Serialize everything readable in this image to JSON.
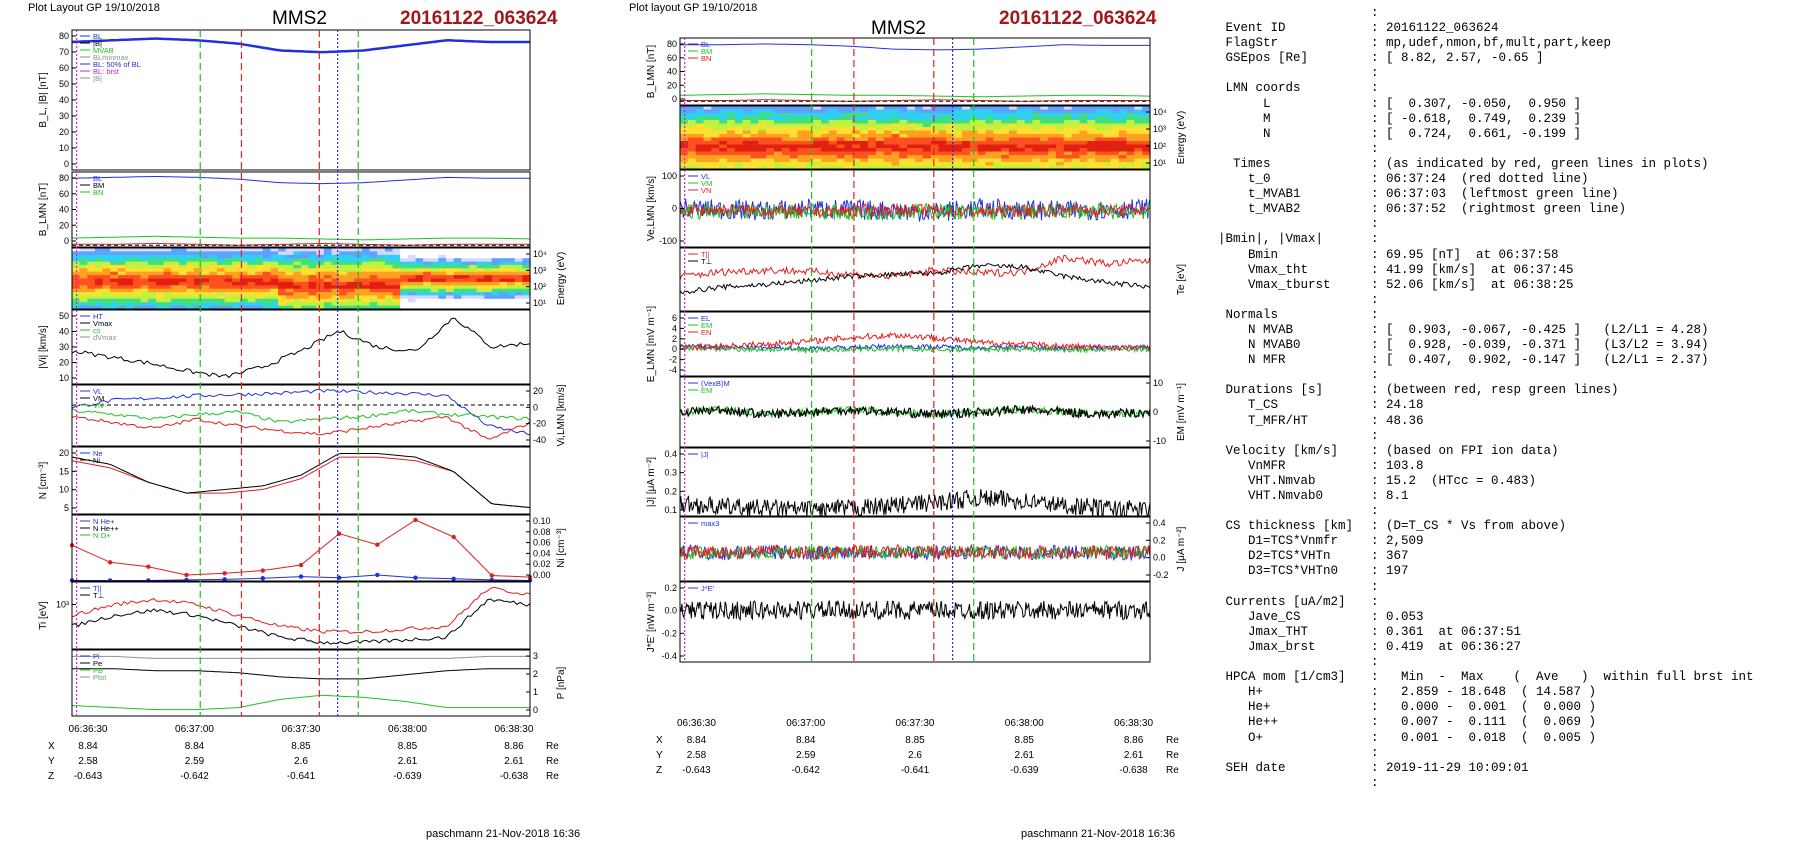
{
  "header": {
    "left_plot_label": "Plot Layout GP 19/10/2018",
    "mid_plot_label": "Plot layout GP 19/10/2018",
    "spacecraft": "MMS2",
    "event": "20161122_063624",
    "footer": "paschmann 21-Nov-2018 16:36"
  },
  "colors": {
    "event_text": "#a01818",
    "red": "#e02020",
    "green": "#20c020",
    "blue": "#2030e0",
    "black": "#000000",
    "magenta": "#d020d0",
    "cyan": "#20b0d0",
    "gray": "#909090"
  },
  "chart_data": [
    {
      "id": "left",
      "type": "line",
      "x_ticks": [
        "06:36:30",
        "06:37:00",
        "06:37:30",
        "06:38:00",
        "06:38:30"
      ],
      "ephemeris": {
        "rows": [
          {
            "label": "X",
            "values": [
              "8.84",
              "8.84",
              "8.85",
              "8.85",
              "8.86"
            ],
            "unit": "Re"
          },
          {
            "label": "Y",
            "values": [
              "2.58",
              "2.59",
              "2.6",
              "2.61",
              "2.61"
            ],
            "unit": "Re"
          },
          {
            "label": "Z",
            "values": [
              "-0.643",
              "-0.642",
              "-0.641",
              "-0.639",
              "-0.638"
            ],
            "unit": "Re"
          }
        ]
      },
      "panels": [
        {
          "key": "b",
          "ylabel": "B_L, |B| [nT]",
          "yticks": [
            "80",
            "70",
            "60",
            "50",
            "40",
            "30",
            "20",
            "10",
            "0"
          ],
          "ytick_side": "left",
          "legend": [
            "BL",
            "|B|",
            "MVAB",
            "BLminmax",
            "BL: 50% of BL",
            "BL: brst",
            "|B|"
          ],
          "series": [
            {
              "name": "BL",
              "values": [
                75,
                76,
                77,
                76,
                74,
                70,
                69,
                70,
                73,
                76,
                75,
                75
              ]
            }
          ]
        },
        {
          "key": "blmn",
          "ylabel": "B_LMN [nT]",
          "yticks": [
            "80",
            "60",
            "40",
            "20",
            "0"
          ],
          "ytick_side": "left",
          "legend": [
            "BL",
            "BM",
            "BN"
          ],
          "series": [
            {
              "name": "BL",
              "values": [
                75,
                76,
                77,
                76,
                74,
                70,
                69,
                70,
                73,
                76,
                75,
                75
              ]
            },
            {
              "name": "BM",
              "values": [
                8,
                9,
                10,
                9,
                8,
                8,
                7,
                6,
                7,
                8,
                8,
                7
              ]
            },
            {
              "name": "BN",
              "values": [
                1,
                1,
                2,
                1,
                0,
                1,
                2,
                1,
                0,
                1,
                1,
                1
              ]
            }
          ]
        },
        {
          "key": "espec",
          "ylabel": "Energy (eV)",
          "yticks": [
            "10⁴",
            "10³",
            "10²",
            "10¹"
          ],
          "ytick_side": "right",
          "type": "heatmap"
        },
        {
          "key": "vi",
          "ylabel": "|Vi| [km/s]",
          "yticks": [
            "50",
            "40",
            "30",
            "20",
            "10"
          ],
          "ytick_side": "left",
          "legend": [
            "HT",
            "Vmax",
            "cs",
            "dVmax"
          ],
          "series": [
            {
              "name": "|Vi|",
              "values": [
                28,
                25,
                22,
                18,
                15,
                20,
                28,
                38,
                30,
                28,
                45,
                30,
                32
              ]
            }
          ]
        },
        {
          "key": "vilmn",
          "ylabel": "Vi,LMN [km/s]",
          "yticks": [
            "20",
            "0",
            "-20",
            "-40"
          ],
          "ytick_side": "right",
          "legend": [
            "VL",
            "VM",
            "VN"
          ],
          "series": [
            {
              "name": "VL",
              "values": [
                -2,
                4,
                6,
                8,
                9,
                10,
                12,
                11,
                10,
                8,
                -18,
                -25
              ]
            },
            {
              "name": "VM",
              "values": [
                -5,
                -8,
                -12,
                -8,
                -6,
                -15,
                -12,
                -10,
                -5,
                -8,
                -10,
                -12
              ]
            },
            {
              "name": "VN",
              "values": [
                -10,
                -15,
                -20,
                -12,
                -18,
                -22,
                -25,
                -20,
                -15,
                -10,
                -30,
                -15
              ]
            }
          ]
        },
        {
          "key": "n",
          "ylabel": "N [cm⁻³]",
          "yticks": [
            "20",
            "15",
            "10",
            "5"
          ],
          "ytick_side": "left",
          "legend": [
            "Ne",
            "Ni"
          ],
          "series": [
            {
              "name": "Ne",
              "values": [
                16,
                14,
                10,
                7,
                7,
                8,
                11,
                17,
                17,
                16,
                13,
                4,
                3
              ]
            },
            {
              "name": "Ni",
              "values": [
                17,
                15,
                10,
                7,
                8,
                9,
                12,
                18,
                18,
                17,
                13,
                4,
                3
              ]
            }
          ]
        },
        {
          "key": "nhpca",
          "ylabel": "Ni [cm⁻³]",
          "yticks": [
            "0.10",
            "0.08",
            "0.06",
            "0.04",
            "0.02",
            "0.00"
          ],
          "ytick_side": "right",
          "legend": [
            "N He+",
            "N He++",
            "N O+"
          ],
          "series": [
            {
              "name": "N He++",
              "values": [
                0.065,
                0.034,
                0.026,
                0.011,
                0.014,
                0.019,
                0.029,
                0.086,
                0.066,
                0.111,
                0.08,
                0.01,
                0.007
              ]
            },
            {
              "name": "N O+",
              "values": [
                0.001,
                0.001,
                0.001,
                0.002,
                0.003,
                0.005,
                0.008,
                0.006,
                0.011,
                0.006,
                0.004,
                0.002,
                0.001
              ]
            }
          ]
        },
        {
          "key": "ti",
          "ylabel": "Ti [eV]",
          "yticks": [
            "10³"
          ],
          "ytick_side": "left",
          "legend": [
            "T||",
            "T⊥"
          ],
          "series": [
            {
              "name": "T||",
              "values": [
                700,
                900,
                1000,
                900,
                700,
                500,
                400,
                400,
                450,
                500,
                1200,
                1100
              ]
            },
            {
              "name": "T⊥",
              "values": [
                500,
                700,
                800,
                700,
                500,
                300,
                200,
                200,
                250,
                300,
                1000,
                900
              ]
            }
          ]
        },
        {
          "key": "p",
          "ylabel": "P [nPa]",
          "yticks": [
            "3",
            "2",
            "1",
            "0"
          ],
          "ytick_side": "right",
          "legend": [
            "Pi",
            "Pe",
            "PB",
            "Ptot"
          ],
          "series": [
            {
              "name": "Ptot",
              "values": [
                2.8,
                2.8,
                2.7,
                2.7,
                2.7,
                2.7,
                2.7,
                2.7,
                2.7,
                2.7,
                2.8,
                2.8
              ]
            },
            {
              "name": "PB",
              "values": [
                2.2,
                2.2,
                2.1,
                2.1,
                2.0,
                1.8,
                1.7,
                1.7,
                1.9,
                2.1,
                2.2,
                2.2
              ]
            },
            {
              "name": "Pi",
              "values": [
                0.4,
                0.3,
                0.2,
                0.2,
                0.3,
                0.7,
                0.9,
                0.8,
                0.6,
                0.3,
                0.3,
                0.3
              ]
            }
          ]
        }
      ]
    },
    {
      "id": "mid",
      "type": "line",
      "x_ticks": [
        "06:36:30",
        "06:37:00",
        "06:37:30",
        "06:38:00",
        "06:38:30"
      ],
      "ephemeris": {
        "rows": [
          {
            "label": "X",
            "values": [
              "8.84",
              "8.84",
              "8.85",
              "8.85",
              "8.86"
            ],
            "unit": "Re"
          },
          {
            "label": "Y",
            "values": [
              "2.58",
              "2.59",
              "2.6",
              "2.61",
              "2.61"
            ],
            "unit": "Re"
          },
          {
            "label": "Z",
            "values": [
              "-0.643",
              "-0.642",
              "-0.641",
              "-0.639",
              "-0.638"
            ],
            "unit": "Re"
          }
        ]
      },
      "panels": [
        {
          "key": "blmn",
          "ylabel": "B_LMN [nT]",
          "yticks": [
            "80",
            "60",
            "40",
            "20",
            "0"
          ],
          "ytick_side": "left",
          "legend": [
            "BL",
            "BM",
            "BN"
          ]
        },
        {
          "key": "espec",
          "ylabel": "Energy (eV)",
          "yticks": [
            "10⁴",
            "10³",
            "10²",
            "10¹"
          ],
          "ytick_side": "right",
          "type": "heatmap"
        },
        {
          "key": "velmn",
          "ylabel": "Ve,LMN [km/s]",
          "yticks": [
            "100",
            "0",
            "-100"
          ],
          "ytick_side": "left",
          "legend": [
            "VL",
            "VM",
            "VN"
          ]
        },
        {
          "key": "te",
          "ylabel": "Te [eV]",
          "yticks": [],
          "ytick_side": "right",
          "legend": [
            "T||",
            "T⊥"
          ]
        },
        {
          "key": "elmn",
          "ylabel": "E_LMN [mV m⁻¹]",
          "yticks": [
            "6",
            "4",
            "2",
            "0",
            "-2",
            "-4"
          ],
          "ytick_side": "left",
          "legend": [
            "EL",
            "EM",
            "EN"
          ]
        },
        {
          "key": "em",
          "ylabel": "EM [mV m⁻¹]",
          "yticks": [
            "10",
            "0",
            "-10"
          ],
          "ytick_side": "right",
          "legend": [
            "(VexB)M",
            "EM"
          ]
        },
        {
          "key": "j",
          "ylabel": "|J| [μA m⁻²]",
          "yticks": [
            "0.4",
            "0.3",
            "0.2",
            "0.1"
          ],
          "ytick_side": "left",
          "legend": [
            "|J|"
          ]
        },
        {
          "key": "jlmn",
          "ylabel": "J [μA m⁻²]",
          "yticks": [
            "0.4",
            "0.2",
            "0.0",
            "-0.2"
          ],
          "ytick_side": "right",
          "legend": [
            "max3"
          ]
        },
        {
          "key": "je",
          "ylabel": "J*E' [nW m⁻³]",
          "yticks": [
            "0.2",
            "0.0",
            "-0.2",
            "-0.4"
          ],
          "ytick_side": "left",
          "legend": [
            "J*E'"
          ]
        }
      ]
    }
  ],
  "info": {
    "lines": [
      {
        "k": "",
        "v": ":"
      },
      {
        "k": " Event ID",
        "v": ": 20161122_063624"
      },
      {
        "k": " FlagStr",
        "v": ": mp,udef,nmon,bf,mult,part,keep"
      },
      {
        "k": " GSEpos [Re]",
        "v": ": [ 8.82, 2.57, -0.65 ]"
      },
      {
        "k": "",
        "v": ":"
      },
      {
        "k": " LMN coords",
        "v": ":"
      },
      {
        "k": "      L",
        "v": ": [  0.307, -0.050,  0.950 ]"
      },
      {
        "k": "      M",
        "v": ": [ -0.618,  0.749,  0.239 ]"
      },
      {
        "k": "      N",
        "v": ": [  0.724,  0.661, -0.199 ]"
      },
      {
        "k": "",
        "v": ":"
      },
      {
        "k": "  Times",
        "v": ": (as indicated by red, green lines in plots)"
      },
      {
        "k": "    t_0",
        "v": ": 06:37:24  (red dotted line)"
      },
      {
        "k": "    t_MVAB1",
        "v": ": 06:37:03  (leftmost green line)"
      },
      {
        "k": "    t_MVAB2",
        "v": ": 06:37:52  (rightmost green line)"
      },
      {
        "k": "",
        "v": ":"
      },
      {
        "k": "|Bmin|, |Vmax|",
        "v": ":"
      },
      {
        "k": "    Bmin",
        "v": ": 69.95 [nT]  at 06:37:58"
      },
      {
        "k": "    Vmax_tht",
        "v": ": 41.99 [km/s]  at 06:37:45"
      },
      {
        "k": "    Vmax_tburst",
        "v": ": 52.06 [km/s]  at 06:38:25"
      },
      {
        "k": "",
        "v": ":"
      },
      {
        "k": " Normals",
        "v": ":"
      },
      {
        "k": "    N MVAB",
        "v": ": [  0.903, -0.067, -0.425 ]   (L2/L1 = 4.28)"
      },
      {
        "k": "    N MVAB0",
        "v": ": [  0.928, -0.039, -0.371 ]   (L3/L2 = 3.94)"
      },
      {
        "k": "    N MFR",
        "v": ": [  0.407,  0.902, -0.147 ]   (L2/L1 = 2.37)"
      },
      {
        "k": "",
        "v": ":"
      },
      {
        "k": " Durations [s]",
        "v": ": (between red, resp green lines)"
      },
      {
        "k": "    T_CS",
        "v": ": 24.18"
      },
      {
        "k": "    T_MFR/HT",
        "v": ": 48.36"
      },
      {
        "k": "",
        "v": ":"
      },
      {
        "k": " Velocity [km/s]",
        "v": ": (based on FPI ion data)"
      },
      {
        "k": "    VnMFR",
        "v": ": 103.8"
      },
      {
        "k": "    VHT.Nmvab",
        "v": ": 15.2  (HTcc = 0.483)"
      },
      {
        "k": "    VHT.Nmvab0",
        "v": ": 8.1"
      },
      {
        "k": "",
        "v": ":"
      },
      {
        "k": " CS thickness [km]",
        "v": ": (D=T_CS * Vs from above)"
      },
      {
        "k": "    D1=TCS*Vnmfr",
        "v": ": 2,509"
      },
      {
        "k": "    D2=TCS*VHTn",
        "v": ": 367"
      },
      {
        "k": "    D3=TCS*VHTn0",
        "v": ": 197"
      },
      {
        "k": "",
        "v": ":"
      },
      {
        "k": " Currents [uA/m2]",
        "v": ":"
      },
      {
        "k": "    Jave_CS",
        "v": ": 0.053"
      },
      {
        "k": "    Jmax_THT",
        "v": ": 0.361  at 06:37:51"
      },
      {
        "k": "    Jmax_brst",
        "v": ": 0.419  at 06:36:27"
      },
      {
        "k": "",
        "v": ":"
      },
      {
        "k": " HPCA mom [1/cm3]",
        "v": ":   Min  -  Max    (  Ave   )  within full brst int"
      },
      {
        "k": "    H+",
        "v": ":   2.859 - 18.648  ( 14.587 )"
      },
      {
        "k": "    He+",
        "v": ":   0.000 -  0.001  (  0.000 )"
      },
      {
        "k": "    He++",
        "v": ":   0.007 -  0.111  (  0.069 )"
      },
      {
        "k": "    O+",
        "v": ":   0.001 -  0.018  (  0.005 )"
      },
      {
        "k": "",
        "v": ":"
      },
      {
        "k": " SEH date",
        "v": ": 2019-11-29 10:09:01"
      },
      {
        "k": "",
        "v": ":"
      }
    ]
  }
}
